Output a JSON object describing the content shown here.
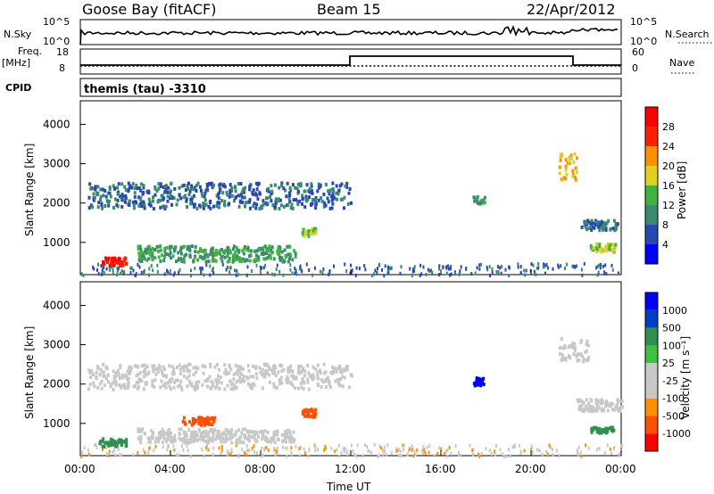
{
  "header": {
    "station": "Goose Bay (fitACF)",
    "beam": "Beam 15",
    "date": "22/Apr/2012"
  },
  "status": {
    "nsky_label": "N.Sky",
    "nsky_ticks": [
      "10^5",
      "10^0"
    ],
    "nsearch_label": "N.Search",
    "nsearch_ticks": [
      "10^5",
      "10^0"
    ],
    "freq_label": "Freq.",
    "freq_unit": "[MHz]",
    "freq_ticks": [
      "18",
      "8"
    ],
    "nave_label": "Nave",
    "nave_ticks": [
      "60",
      "0"
    ],
    "cpid_label": "CPID",
    "cpid_value": "themis (tau) -3310"
  },
  "axes": {
    "ylabel": "Slant Range [km]",
    "xlabel": "Time UT",
    "x_ticks": [
      "00:00",
      "04:00",
      "08:00",
      "12:00",
      "16:00",
      "20:00",
      "00:00"
    ],
    "y_ticks": [
      "1000",
      "2000",
      "3000",
      "4000"
    ]
  },
  "colorbars": {
    "power": {
      "label": "Power [dB]",
      "ticks": [
        "4",
        "8",
        "12",
        "16",
        "20",
        "24",
        "28"
      ],
      "colors": [
        "#0000ff",
        "#2848b0",
        "#3a8a70",
        "#44b040",
        "#e0d020",
        "#ff9000",
        "#ff2000",
        "#ff0000"
      ]
    },
    "velocity": {
      "label": "Velocity [m s⁻¹]",
      "ticks": [
        "-1000",
        "-500",
        "-100",
        "-25",
        "25",
        "100",
        "500",
        "1000"
      ],
      "colors": [
        "#ff0000",
        "#ff5000",
        "#ff9000",
        "#c8c8c8",
        "#c8c8c8",
        "#40c040",
        "#309050",
        "#0040c0",
        "#0000ff"
      ]
    }
  },
  "chart_data": [
    {
      "type": "heatmap",
      "title": "Power",
      "xlabel": "Time UT",
      "ylabel": "Slant Range [km]",
      "xlim": [
        0,
        24
      ],
      "ylim": [
        180,
        4600
      ],
      "x_unit": "hours UT",
      "regions": [
        {
          "t0": 0.9,
          "t1": 2.0,
          "r0": 450,
          "r1": 650,
          "level": 28
        },
        {
          "t0": 0.3,
          "t1": 12.0,
          "r0": 1900,
          "r1": 2550,
          "level": 8
        },
        {
          "t0": 2.5,
          "t1": 9.5,
          "r0": 550,
          "r1": 950,
          "level": 12
        },
        {
          "t0": 9.8,
          "t1": 10.4,
          "r0": 1200,
          "r1": 1400,
          "level": 16
        },
        {
          "t0": 17.4,
          "t1": 17.9,
          "r0": 2000,
          "r1": 2200,
          "level": 12
        },
        {
          "t0": 21.2,
          "t1": 22.0,
          "r0": 2600,
          "r1": 3300,
          "level": 20
        },
        {
          "t0": 22.2,
          "t1": 23.8,
          "r0": 1350,
          "r1": 1600,
          "level": 8
        },
        {
          "t0": 22.6,
          "t1": 23.7,
          "r0": 800,
          "r1": 1000,
          "level": 16
        }
      ]
    },
    {
      "type": "heatmap",
      "title": "Velocity",
      "xlabel": "Time UT",
      "ylabel": "Slant Range [km]",
      "xlim": [
        0,
        24
      ],
      "ylim": [
        180,
        4600
      ],
      "x_unit": "hours UT",
      "regions": [
        {
          "t0": 0.8,
          "t1": 2.0,
          "r0": 450,
          "r1": 650,
          "level": 100
        },
        {
          "t0": 0.3,
          "t1": 12.0,
          "r0": 1900,
          "r1": 2550,
          "level": 0
        },
        {
          "t0": 2.5,
          "t1": 9.5,
          "r0": 550,
          "r1": 900,
          "level": 0
        },
        {
          "t0": 4.5,
          "t1": 6.0,
          "r0": 1000,
          "r1": 1200,
          "level": -500
        },
        {
          "t0": 9.8,
          "t1": 10.4,
          "r0": 1200,
          "r1": 1400,
          "level": -500
        },
        {
          "t0": 17.4,
          "t1": 17.9,
          "r0": 2000,
          "r1": 2200,
          "level": 1000
        },
        {
          "t0": 21.2,
          "t1": 22.5,
          "r0": 2600,
          "r1": 3200,
          "level": 0
        },
        {
          "t0": 22.0,
          "t1": 24.0,
          "r0": 1350,
          "r1": 1650,
          "level": 0
        },
        {
          "t0": 22.6,
          "t1": 23.7,
          "r0": 800,
          "r1": 950,
          "level": 100
        }
      ]
    }
  ]
}
